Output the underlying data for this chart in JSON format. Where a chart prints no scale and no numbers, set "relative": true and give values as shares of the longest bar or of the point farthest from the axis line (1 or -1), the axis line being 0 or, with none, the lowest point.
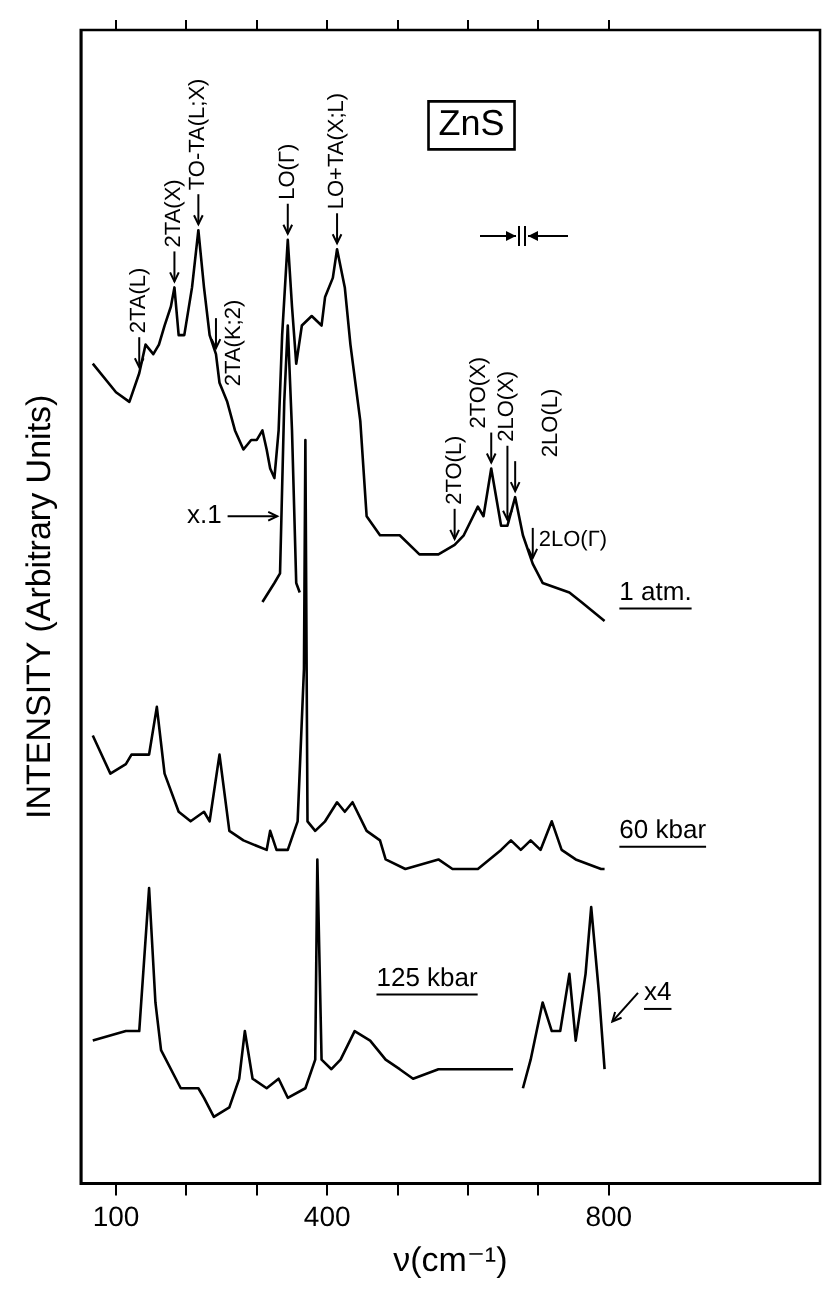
{
  "chart_data": {
    "type": "line",
    "title": "ZnS",
    "xlabel": "ν(cm⁻¹)",
    "ylabel": "INTENSITY (Arbitrary Units)",
    "relative": true,
    "xlim": [
      50,
      1100
    ],
    "xticks": [
      100,
      {
        "value": 200,
        "label": null
      },
      {
        "value": 300,
        "label": null
      },
      400,
      {
        "value": 500,
        "label": null
      },
      {
        "value": 600,
        "label": null
      },
      {
        "value": 700,
        "label": null
      },
      800
    ],
    "series": [
      {
        "name": "1 atm.",
        "color": "#000000",
        "x": [
          67,
          100,
          119,
          133,
          142,
          153,
          161,
          169,
          178,
          183,
          189,
          197,
          208,
          217,
          225,
          233,
          242,
          247,
          258,
          269,
          281,
          292,
          300,
          308,
          314,
          319,
          325,
          331,
          336,
          344,
          350,
          356,
          364,
          378,
          392,
          397,
          408,
          414,
          425,
          433,
          447,
          456,
          475,
          503,
          531,
          558,
          581,
          594,
          614,
          622,
          633,
          647,
          656,
          667,
          678,
          692,
          706,
          744,
          761,
          794
        ],
        "values": [
          0.86,
          0.83,
          0.82,
          0.85,
          0.88,
          0.87,
          0.88,
          0.9,
          0.92,
          0.94,
          0.89,
          0.89,
          0.94,
          1.0,
          0.94,
          0.89,
          0.87,
          0.84,
          0.82,
          0.79,
          0.77,
          0.78,
          0.78,
          0.79,
          0.77,
          0.75,
          0.74,
          0.79,
          0.89,
          0.99,
          0.92,
          0.86,
          0.9,
          0.91,
          0.9,
          0.93,
          0.95,
          0.98,
          0.94,
          0.88,
          0.8,
          0.7,
          0.68,
          0.68,
          0.66,
          0.66,
          0.67,
          0.68,
          0.71,
          0.7,
          0.75,
          0.69,
          0.69,
          0.72,
          0.68,
          0.65,
          0.63,
          0.62,
          0.61,
          0.59
        ]
      },
      {
        "name": "x.1",
        "color": "#000000",
        "x": [
          308,
          325,
          333,
          339,
          344,
          350,
          356,
          361
        ],
        "values": [
          0.61,
          0.63,
          0.64,
          0.82,
          0.9,
          0.79,
          0.63,
          0.62
        ]
      },
      {
        "name": "60 kbar",
        "color": "#000000",
        "x": [
          67,
          92,
          114,
          122,
          147,
          158,
          169,
          189,
          206,
          225,
          233,
          247,
          261,
          281,
          314,
          319,
          328,
          344,
          358,
          367,
          369,
          372,
          383,
          397,
          414,
          425,
          436,
          456,
          475,
          483,
          511,
          558,
          578,
          614,
          647,
          661,
          675,
          689,
          703,
          719,
          733,
          753,
          789,
          794
        ],
        "values": [
          0.47,
          0.43,
          0.44,
          0.45,
          0.45,
          0.5,
          0.43,
          0.39,
          0.38,
          0.39,
          0.38,
          0.45,
          0.37,
          0.36,
          0.35,
          0.37,
          0.35,
          0.35,
          0.38,
          0.54,
          0.78,
          0.38,
          0.37,
          0.38,
          0.4,
          0.39,
          0.4,
          0.37,
          0.36,
          0.34,
          0.33,
          0.34,
          0.33,
          0.33,
          0.35,
          0.36,
          0.35,
          0.36,
          0.35,
          0.38,
          0.35,
          0.34,
          0.33,
          0.33
        ]
      },
      {
        "name": "125 kbar",
        "color": "#000000",
        "x": [
          67,
          114,
          133,
          147,
          156,
          164,
          192,
          217,
          225,
          239,
          261,
          275,
          283,
          294,
          314,
          331,
          344,
          369,
          383,
          386,
          392,
          406,
          419,
          439,
          461,
          483,
          503,
          522,
          558,
          594,
          633,
          664
        ],
        "values": [
          0.15,
          0.16,
          0.16,
          0.31,
          0.19,
          0.14,
          0.1,
          0.1,
          0.09,
          0.07,
          0.08,
          0.11,
          0.16,
          0.11,
          0.1,
          0.11,
          0.09,
          0.1,
          0.13,
          0.34,
          0.13,
          0.12,
          0.13,
          0.16,
          0.15,
          0.13,
          0.12,
          0.11,
          0.12,
          0.12,
          0.12,
          0.12
        ]
      },
      {
        "name": "x4",
        "color": "#000000",
        "x": [
          678,
          689,
          706,
          719,
          731,
          744,
          753,
          767,
          775,
          786,
          794
        ],
        "values": [
          0.1,
          0.13,
          0.19,
          0.16,
          0.16,
          0.22,
          0.15,
          0.22,
          0.29,
          0.2,
          0.12
        ]
      }
    ],
    "annotations": [
      {
        "text": "2TA(L)",
        "x": 133,
        "y": 0.85
      },
      {
        "text": "2TA(X)",
        "x": 183,
        "y": 0.94
      },
      {
        "text": "TO-TA(L;X)",
        "x": 217,
        "y": 1.0
      },
      {
        "text": "2TA(K;2)",
        "x": 242,
        "y": 0.87
      },
      {
        "text": "LO(Γ)",
        "x": 344,
        "y": 0.99
      },
      {
        "text": "LO+TA(X;L)",
        "x": 414,
        "y": 0.98
      },
      {
        "text": "2TO(L)",
        "x": 581,
        "y": 0.67
      },
      {
        "text": "2TO(X)",
        "x": 633,
        "y": 0.75
      },
      {
        "text": "2LO(X)",
        "x": 656,
        "y": 0.69
      },
      {
        "text": "2LO(L)",
        "x": 667,
        "y": 0.72
      },
      {
        "text": "2LO(Γ)",
        "x": 692,
        "y": 0.65
      }
    ]
  }
}
